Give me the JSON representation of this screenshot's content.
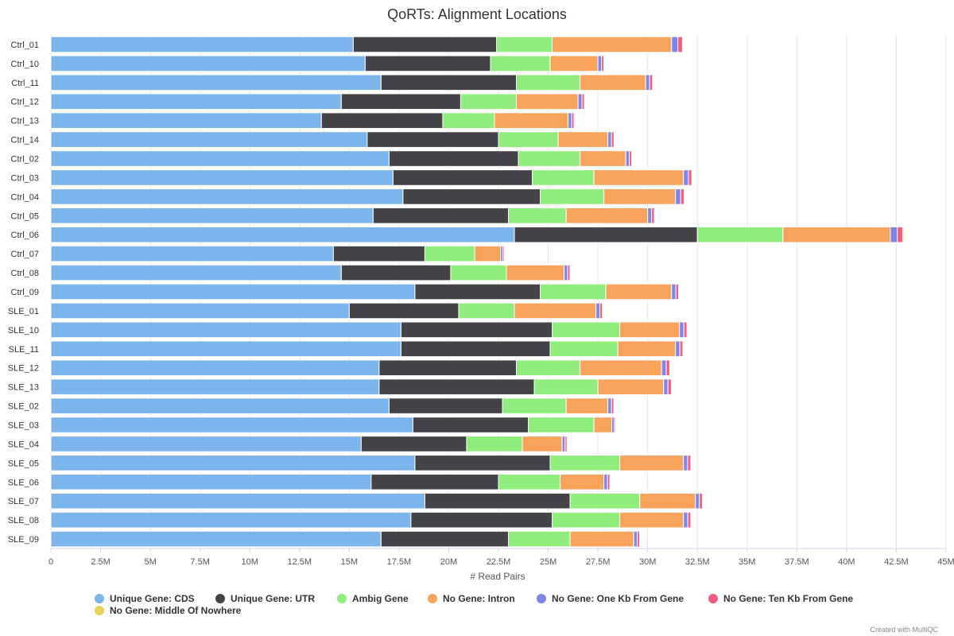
{
  "chart_data": {
    "type": "bar",
    "orientation": "horizontal",
    "stacked": true,
    "title": "QoRTs: Alignment Locations",
    "xlabel": "# Read Pairs",
    "xlim": [
      0,
      45000000
    ],
    "x_tick_labels": [
      "0",
      "2.5M",
      "5M",
      "7.5M",
      "10M",
      "12.5M",
      "15M",
      "17.5M",
      "20M",
      "22.5M",
      "25M",
      "27.5M",
      "30M",
      "32.5M",
      "35M",
      "37.5M",
      "40M",
      "42.5M",
      "45M"
    ],
    "grid": true,
    "legend_position": "bottom",
    "categories": [
      "Ctrl_01",
      "Ctrl_10",
      "Ctrl_11",
      "Ctrl_12",
      "Ctrl_13",
      "Ctrl_14",
      "Ctrl_02",
      "Ctrl_03",
      "Ctrl_04",
      "Ctrl_05",
      "Ctrl_06",
      "Ctrl_07",
      "Ctrl_08",
      "Ctrl_09",
      "SLE_01",
      "SLE_10",
      "SLE_11",
      "SLE_12",
      "SLE_13",
      "SLE_02",
      "SLE_03",
      "SLE_04",
      "SLE_05",
      "SLE_06",
      "SLE_07",
      "SLE_08",
      "SLE_09"
    ],
    "series": [
      {
        "name": "Unique Gene: CDS",
        "color": "#7cb5ec",
        "values": [
          15200000,
          15800000,
          16600000,
          14600000,
          13600000,
          15900000,
          17000000,
          17200000,
          17700000,
          16200000,
          23300000,
          14200000,
          14600000,
          18300000,
          15000000,
          17600000,
          17600000,
          16500000,
          16500000,
          17000000,
          18200000,
          15600000,
          18300000,
          16100000,
          18800000,
          18100000,
          16600000
        ]
      },
      {
        "name": "Unique Gene: UTR",
        "color": "#434348",
        "values": [
          7200000,
          6300000,
          6800000,
          6000000,
          6100000,
          6600000,
          6500000,
          7000000,
          6900000,
          6800000,
          9200000,
          4600000,
          5500000,
          6300000,
          5500000,
          7600000,
          7500000,
          6900000,
          7800000,
          5700000,
          5800000,
          5300000,
          6800000,
          6400000,
          7300000,
          7100000,
          6400000
        ]
      },
      {
        "name": "Ambig Gene",
        "color": "#90ed7d",
        "values": [
          2800000,
          3000000,
          3200000,
          2800000,
          2600000,
          3000000,
          3100000,
          3100000,
          3200000,
          2900000,
          4300000,
          2500000,
          2800000,
          3300000,
          2800000,
          3400000,
          3400000,
          3200000,
          3200000,
          3200000,
          3300000,
          2800000,
          3500000,
          3100000,
          3500000,
          3400000,
          3100000
        ]
      },
      {
        "name": "No Gene: Intron",
        "color": "#f7a35c",
        "values": [
          6000000,
          2400000,
          3300000,
          3100000,
          3700000,
          2500000,
          2300000,
          4500000,
          3600000,
          4100000,
          5400000,
          1300000,
          2900000,
          3300000,
          4100000,
          3000000,
          2900000,
          4100000,
          3300000,
          2100000,
          900000,
          2000000,
          3200000,
          2200000,
          2800000,
          3200000,
          3200000
        ]
      },
      {
        "name": "No Gene: One Kb From Gene",
        "color": "#8085e9",
        "values": [
          320000,
          180000,
          200000,
          200000,
          180000,
          180000,
          180000,
          250000,
          260000,
          200000,
          350000,
          100000,
          180000,
          220000,
          200000,
          220000,
          220000,
          230000,
          220000,
          180000,
          130000,
          150000,
          210000,
          180000,
          200000,
          220000,
          180000
        ]
      },
      {
        "name": "No Gene: Ten Kb From Gene",
        "color": "#f15c80",
        "values": [
          230000,
          120000,
          150000,
          120000,
          120000,
          130000,
          120000,
          170000,
          170000,
          140000,
          280000,
          80000,
          120000,
          140000,
          130000,
          160000,
          150000,
          180000,
          170000,
          120000,
          60000,
          100000,
          160000,
          120000,
          150000,
          150000,
          120000
        ]
      },
      {
        "name": "No Gene: Middle Of Nowhere",
        "color": "#e4d354",
        "values": [
          50000,
          30000,
          30000,
          20000,
          20000,
          20000,
          20000,
          30000,
          30000,
          20000,
          60000,
          10000,
          20000,
          30000,
          20000,
          30000,
          30000,
          40000,
          30000,
          20000,
          10000,
          20000,
          30000,
          20000,
          30000,
          30000,
          20000
        ]
      }
    ]
  },
  "footer": {
    "credit": "Created with MultiQC"
  }
}
